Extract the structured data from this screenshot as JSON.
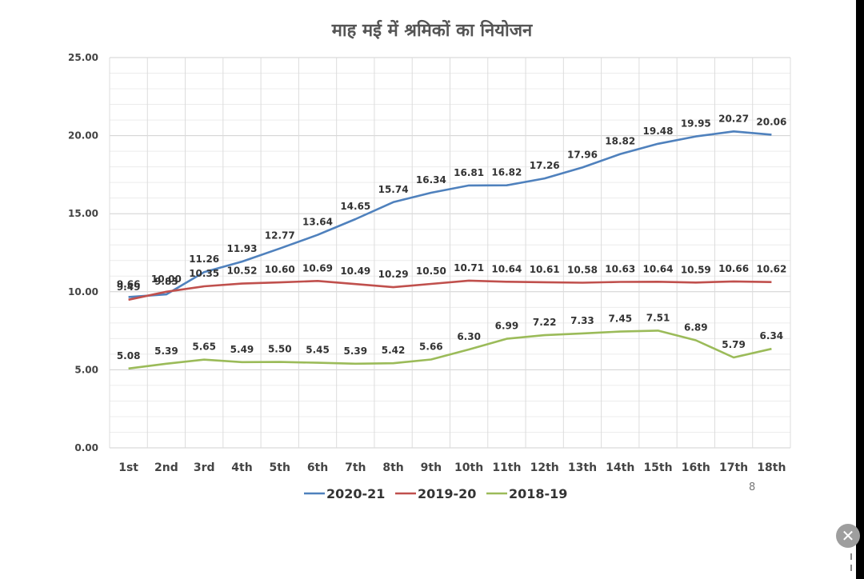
{
  "page_number": "8",
  "chart_data": {
    "type": "line",
    "title": "माह मई में श्रमिकों का नियोजन",
    "xlabel": "",
    "ylabel": "",
    "ylim": [
      0,
      25
    ],
    "yticks": [
      "0.00",
      "5.00",
      "10.00",
      "15.00",
      "20.00",
      "25.00"
    ],
    "categories": [
      "1st",
      "2nd",
      "3rd",
      "4th",
      "5th",
      "6th",
      "7th",
      "8th",
      "9th",
      "10th",
      "11th",
      "12th",
      "13th",
      "14th",
      "15th",
      "16th",
      "17th",
      "18th"
    ],
    "legend_position": "bottom",
    "series": [
      {
        "name": "2020-21",
        "color": "#4f81bd",
        "label_pos": "above",
        "values": [
          9.66,
          9.83,
          11.26,
          11.93,
          12.77,
          13.64,
          14.65,
          15.74,
          16.34,
          16.81,
          16.82,
          17.26,
          17.96,
          18.82,
          19.48,
          19.95,
          20.27,
          20.06
        ],
        "labels": [
          "9.66",
          "9.83",
          "11.26",
          "11.93",
          "12.77",
          "13.64",
          "14.65",
          "15.74",
          "16.34",
          "16.81",
          "16.82",
          "17.26",
          "17.96",
          "18.82",
          "19.48",
          "19.95",
          "20.27",
          "20.06"
        ]
      },
      {
        "name": "2019-20",
        "color": "#c0504d",
        "label_pos": "above",
        "values": [
          9.49,
          10.0,
          10.35,
          10.52,
          10.6,
          10.69,
          10.49,
          10.29,
          10.5,
          10.71,
          10.64,
          10.61,
          10.58,
          10.63,
          10.64,
          10.59,
          10.66,
          10.62
        ],
        "labels": [
          "9.49",
          "10.00",
          "10.35",
          "10.52",
          "10.60",
          "10.69",
          "10.49",
          "10.29",
          "10.50",
          "10.71",
          "10.64",
          "10.61",
          "10.58",
          "10.63",
          "10.64",
          "10.59",
          "10.66",
          "10.62"
        ]
      },
      {
        "name": "2018-19",
        "color": "#9bbb59",
        "label_pos": "above",
        "values": [
          5.08,
          5.39,
          5.65,
          5.49,
          5.5,
          5.45,
          5.39,
          5.42,
          5.66,
          6.3,
          6.99,
          7.22,
          7.33,
          7.45,
          7.51,
          6.89,
          5.79,
          6.34
        ],
        "labels": [
          "5.08",
          "5.39",
          "5.65",
          "5.49",
          "5.50",
          "5.45",
          "5.39",
          "5.42",
          "5.66",
          "6.30",
          "6.99",
          "7.22",
          "7.33",
          "7.45",
          "7.51",
          "6.89",
          "5.79",
          "6.34"
        ]
      }
    ]
  }
}
